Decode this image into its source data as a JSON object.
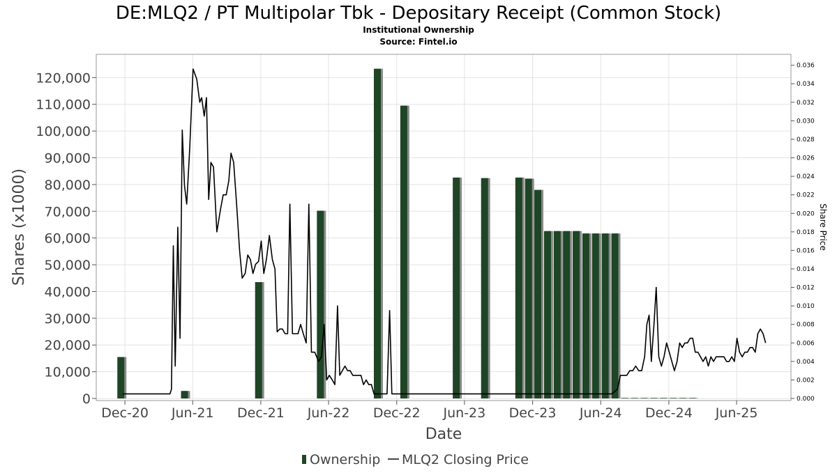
{
  "chart_data": {
    "type": "bar+line",
    "title": "DE:MLQ2 / PT Multipolar Tbk - Depositary Receipt (Common Stock)",
    "subtitle_lines": [
      "Institutional Ownership",
      "Source: Fintel.io"
    ],
    "xlabel": "Date",
    "ylabel": "Shares (x1000)",
    "y2label": "Share Price",
    "x_ticks": [
      "Dec-20",
      "Jun-21",
      "Dec-21",
      "Jun-22",
      "Dec-22",
      "Jun-23",
      "Dec-23",
      "Jun-24",
      "Dec-24",
      "Jun-25"
    ],
    "x_range": [
      "2020-09-15",
      "2025-10-25"
    ],
    "ylim": [
      0,
      130000
    ],
    "y_ticks": [
      0,
      10000,
      20000,
      30000,
      40000,
      50000,
      60000,
      70000,
      80000,
      90000,
      100000,
      110000,
      120000
    ],
    "y_tick_labels": [
      "0",
      "10,000",
      "20,000",
      "30,000",
      "40,000",
      "50,000",
      "60,000",
      "70,000",
      "80,000",
      "90,000",
      "100,000",
      "110,000",
      "120,000"
    ],
    "y2lim": [
      0,
      0.0373
    ],
    "y2_ticks": [
      0,
      0.002,
      0.004,
      0.006,
      0.008,
      0.01,
      0.012,
      0.014,
      0.016,
      0.018,
      0.02,
      0.022,
      0.024,
      0.026,
      0.028,
      0.03,
      0.032,
      0.034,
      0.036
    ],
    "y2_tick_labels": [
      "0.000",
      "0.002",
      "0.004",
      "0.006",
      "0.008",
      "0.010",
      "0.012",
      "0.014",
      "0.016",
      "0.018",
      "0.020",
      "0.022",
      "0.024",
      "0.026",
      "0.028",
      "0.030",
      "0.032",
      "0.034",
      "0.036"
    ],
    "grid": true,
    "legend_position": "bottom-center",
    "series": [
      {
        "name": "Ownership",
        "kind": "bar",
        "color": "#1e4525",
        "points": [
          {
            "date": "2020-11-20",
            "value": 15500
          },
          {
            "date": "2021-05-10",
            "value": 2800
          },
          {
            "date": "2021-11-25",
            "value": 43500
          },
          {
            "date": "2022-05-10",
            "value": 70200
          },
          {
            "date": "2022-10-10",
            "value": 123300
          },
          {
            "date": "2022-12-20",
            "value": 109500
          },
          {
            "date": "2023-05-10",
            "value": 82600
          },
          {
            "date": "2023-07-25",
            "value": 82400
          },
          {
            "date": "2023-10-25",
            "value": 82600
          },
          {
            "date": "2023-11-20",
            "value": 82200
          },
          {
            "date": "2023-12-15",
            "value": 78000
          },
          {
            "date": "2024-01-10",
            "value": 62600
          },
          {
            "date": "2024-02-05",
            "value": 62600
          },
          {
            "date": "2024-03-01",
            "value": 62600
          },
          {
            "date": "2024-03-27",
            "value": 62600
          },
          {
            "date": "2024-04-22",
            "value": 61700
          },
          {
            "date": "2024-05-18",
            "value": 61700
          },
          {
            "date": "2024-06-13",
            "value": 61700
          },
          {
            "date": "2024-07-09",
            "value": 61700
          },
          {
            "date": "2024-08-04",
            "value": 200
          },
          {
            "date": "2024-08-30",
            "value": 200
          },
          {
            "date": "2024-09-25",
            "value": 200
          },
          {
            "date": "2024-10-21",
            "value": 200
          },
          {
            "date": "2024-11-16",
            "value": 200
          },
          {
            "date": "2024-12-12",
            "value": 200
          },
          {
            "date": "2025-01-07",
            "value": 200
          },
          {
            "date": "2025-02-02",
            "value": 200
          }
        ]
      },
      {
        "name": "MLQ2 Closing Price",
        "kind": "line",
        "color": "#000000",
        "points": [
          [
            "2020-11-25",
            0.0005
          ],
          [
            "2021-01-15",
            0.0005
          ],
          [
            "2021-03-15",
            0.0005
          ],
          [
            "2021-04-01",
            0.0005
          ],
          [
            "2021-04-05",
            0.001
          ],
          [
            "2021-04-10",
            0.0165
          ],
          [
            "2021-04-15",
            0.0035
          ],
          [
            "2021-04-22",
            0.0185
          ],
          [
            "2021-04-28",
            0.0065
          ],
          [
            "2021-05-04",
            0.029
          ],
          [
            "2021-05-10",
            0.023
          ],
          [
            "2021-05-16",
            0.021
          ],
          [
            "2021-05-24",
            0.027
          ],
          [
            "2021-06-02",
            0.0356
          ],
          [
            "2021-06-12",
            0.0345
          ],
          [
            "2021-06-20",
            0.032
          ],
          [
            "2021-06-25",
            0.0325
          ],
          [
            "2021-07-02",
            0.0305
          ],
          [
            "2021-07-08",
            0.0325
          ],
          [
            "2021-07-14",
            0.0215
          ],
          [
            "2021-07-20",
            0.0255
          ],
          [
            "2021-07-27",
            0.025
          ],
          [
            "2021-08-05",
            0.018
          ],
          [
            "2021-08-15",
            0.0205
          ],
          [
            "2021-08-22",
            0.022
          ],
          [
            "2021-08-30",
            0.022
          ],
          [
            "2021-09-06",
            0.0235
          ],
          [
            "2021-09-12",
            0.0265
          ],
          [
            "2021-09-19",
            0.0255
          ],
          [
            "2021-09-27",
            0.021
          ],
          [
            "2021-10-05",
            0.016
          ],
          [
            "2021-10-12",
            0.013
          ],
          [
            "2021-10-20",
            0.0135
          ],
          [
            "2021-10-27",
            0.0155
          ],
          [
            "2021-11-03",
            0.015
          ],
          [
            "2021-11-10",
            0.0135
          ],
          [
            "2021-11-17",
            0.0145
          ],
          [
            "2021-11-25",
            0.0148
          ],
          [
            "2021-12-02",
            0.017
          ],
          [
            "2021-12-09",
            0.0135
          ],
          [
            "2021-12-16",
            0.015
          ],
          [
            "2021-12-24",
            0.0176
          ],
          [
            "2022-01-01",
            0.015
          ],
          [
            "2022-01-08",
            0.014
          ],
          [
            "2022-01-14",
            0.0072
          ],
          [
            "2022-01-21",
            0.0075
          ],
          [
            "2022-01-28",
            0.0075
          ],
          [
            "2022-02-04",
            0.007
          ],
          [
            "2022-02-11",
            0.007
          ],
          [
            "2022-02-17",
            0.021
          ],
          [
            "2022-02-24",
            0.007
          ],
          [
            "2022-03-04",
            0.007
          ],
          [
            "2022-03-11",
            0.007
          ],
          [
            "2022-03-18",
            0.008
          ],
          [
            "2022-03-25",
            0.007
          ],
          [
            "2022-04-02",
            0.006
          ],
          [
            "2022-04-09",
            0.021
          ],
          [
            "2022-04-16",
            0.005
          ],
          [
            "2022-04-25",
            0.005
          ],
          [
            "2022-05-05",
            0.004
          ],
          [
            "2022-05-13",
            0.0045
          ],
          [
            "2022-05-20",
            0.008
          ],
          [
            "2022-05-27",
            0.002
          ],
          [
            "2022-06-03",
            0.0025
          ],
          [
            "2022-06-11",
            0.002
          ],
          [
            "2022-06-18",
            0.0015
          ],
          [
            "2022-06-25",
            0.01
          ],
          [
            "2022-07-01",
            0.0025
          ],
          [
            "2022-07-08",
            0.003
          ],
          [
            "2022-07-15",
            0.0035
          ],
          [
            "2022-07-22",
            0.003
          ],
          [
            "2022-07-29",
            0.003
          ],
          [
            "2022-08-05",
            0.0025
          ],
          [
            "2022-08-12",
            0.0025
          ],
          [
            "2022-08-20",
            0.0025
          ],
          [
            "2022-08-27",
            0.0025
          ],
          [
            "2022-09-03",
            0.0015
          ],
          [
            "2022-09-10",
            0.002
          ],
          [
            "2022-09-17",
            0.0015
          ],
          [
            "2022-09-24",
            0.0015
          ],
          [
            "2022-10-01",
            0.0005
          ],
          [
            "2022-10-25",
            0.0005
          ],
          [
            "2022-11-05",
            0.0005
          ],
          [
            "2022-11-12",
            0.0095
          ],
          [
            "2022-11-18",
            0.0005
          ],
          [
            "2022-12-15",
            0.0005
          ],
          [
            "2023-03-01",
            0.0005
          ],
          [
            "2023-08-01",
            0.0005
          ],
          [
            "2023-12-01",
            0.0005
          ],
          [
            "2024-04-01",
            0.0005
          ],
          [
            "2024-07-01",
            0.0005
          ],
          [
            "2024-07-16",
            0.001
          ],
          [
            "2024-07-24",
            0.0025
          ],
          [
            "2024-08-01",
            0.0025
          ],
          [
            "2024-08-10",
            0.0025
          ],
          [
            "2024-08-18",
            0.003
          ],
          [
            "2024-08-26",
            0.003
          ],
          [
            "2024-09-03",
            0.0035
          ],
          [
            "2024-09-11",
            0.003
          ],
          [
            "2024-09-19",
            0.003
          ],
          [
            "2024-09-27",
            0.0045
          ],
          [
            "2024-10-03",
            0.008
          ],
          [
            "2024-10-09",
            0.009
          ],
          [
            "2024-10-15",
            0.004
          ],
          [
            "2024-10-22",
            0.008
          ],
          [
            "2024-10-28",
            0.012
          ],
          [
            "2024-11-04",
            0.0045
          ],
          [
            "2024-11-11",
            0.0035
          ],
          [
            "2024-11-18",
            0.0045
          ],
          [
            "2024-11-25",
            0.006
          ],
          [
            "2024-12-02",
            0.005
          ],
          [
            "2024-12-09",
            0.004
          ],
          [
            "2024-12-16",
            0.003
          ],
          [
            "2024-12-23",
            0.004
          ],
          [
            "2024-12-30",
            0.006
          ],
          [
            "2025-01-06",
            0.0055
          ],
          [
            "2025-01-13",
            0.006
          ],
          [
            "2025-01-20",
            0.006
          ],
          [
            "2025-01-27",
            0.0065
          ],
          [
            "2025-02-03",
            0.0065
          ],
          [
            "2025-02-10",
            0.005
          ],
          [
            "2025-02-17",
            0.005
          ],
          [
            "2025-02-24",
            0.0045
          ],
          [
            "2025-03-03",
            0.004
          ],
          [
            "2025-03-10",
            0.0045
          ],
          [
            "2025-03-17",
            0.0035
          ],
          [
            "2025-03-24",
            0.0045
          ],
          [
            "2025-03-31",
            0.004
          ],
          [
            "2025-04-07",
            0.0045
          ],
          [
            "2025-04-14",
            0.0045
          ],
          [
            "2025-04-21",
            0.0045
          ],
          [
            "2025-04-28",
            0.0045
          ],
          [
            "2025-05-05",
            0.004
          ],
          [
            "2025-05-12",
            0.004
          ],
          [
            "2025-05-19",
            0.0045
          ],
          [
            "2025-05-26",
            0.004
          ],
          [
            "2025-06-02",
            0.0065
          ],
          [
            "2025-06-09",
            0.005
          ],
          [
            "2025-06-16",
            0.0045
          ],
          [
            "2025-06-23",
            0.005
          ],
          [
            "2025-06-30",
            0.005
          ],
          [
            "2025-07-07",
            0.0055
          ],
          [
            "2025-07-14",
            0.0055
          ],
          [
            "2025-07-21",
            0.005
          ],
          [
            "2025-07-28",
            0.007
          ],
          [
            "2025-08-04",
            0.0075
          ],
          [
            "2025-08-11",
            0.007
          ],
          [
            "2025-08-18",
            0.006
          ]
        ]
      }
    ]
  }
}
